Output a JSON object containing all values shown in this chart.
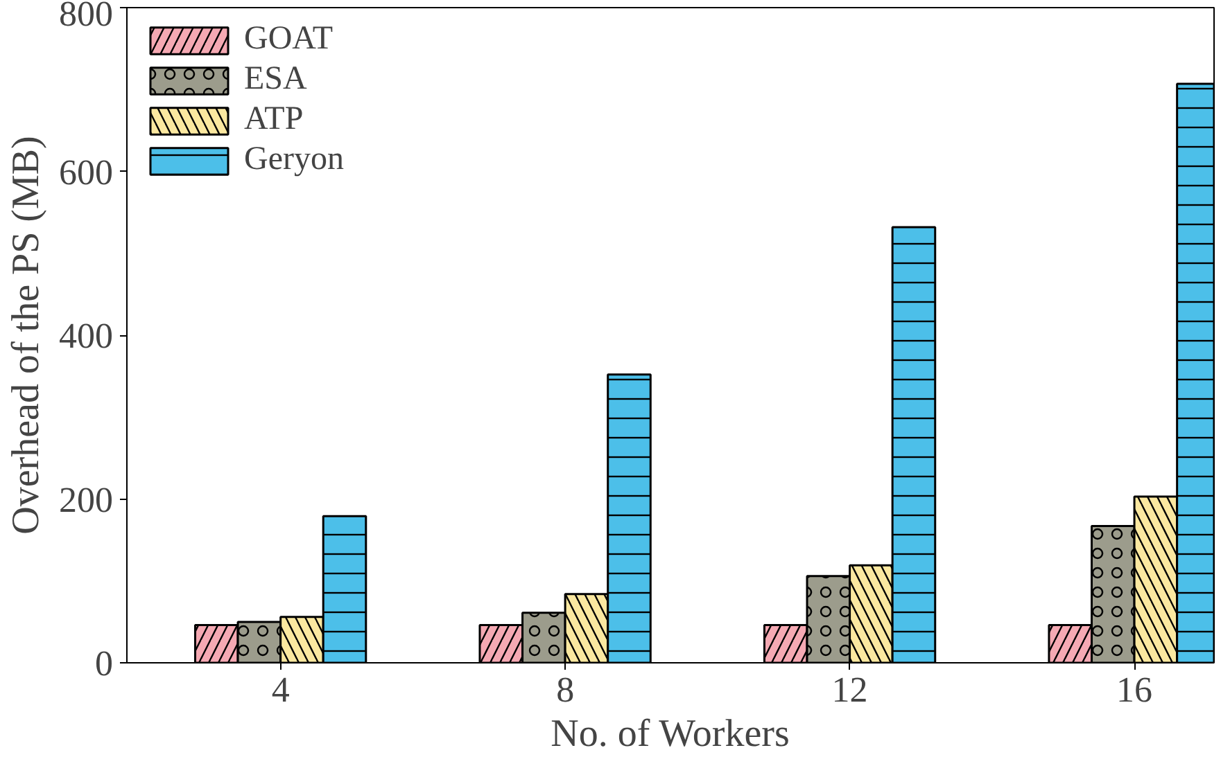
{
  "chart_data": {
    "type": "bar",
    "xlabel": "No. of Workers",
    "ylabel": "Overhead of the PS (MB)",
    "categories": [
      "4",
      "8",
      "12",
      "16"
    ],
    "series": [
      {
        "name": "GOAT",
        "color": "#f5a9b3",
        "values": [
          46,
          46,
          46,
          46
        ]
      },
      {
        "name": "ESA",
        "color": "#9c9c8c",
        "values": [
          50,
          61,
          106,
          167
        ]
      },
      {
        "name": "ATP",
        "color": "#fbe8a0",
        "values": [
          56,
          84,
          119,
          203
        ]
      },
      {
        "name": "Geryon",
        "color": "#4cbfe9",
        "values": [
          179,
          352,
          532,
          707
        ]
      }
    ],
    "ylim": [
      0,
      800
    ],
    "yticks": [
      0,
      200,
      400,
      600,
      800
    ],
    "grid": false,
    "legend": "top left"
  }
}
